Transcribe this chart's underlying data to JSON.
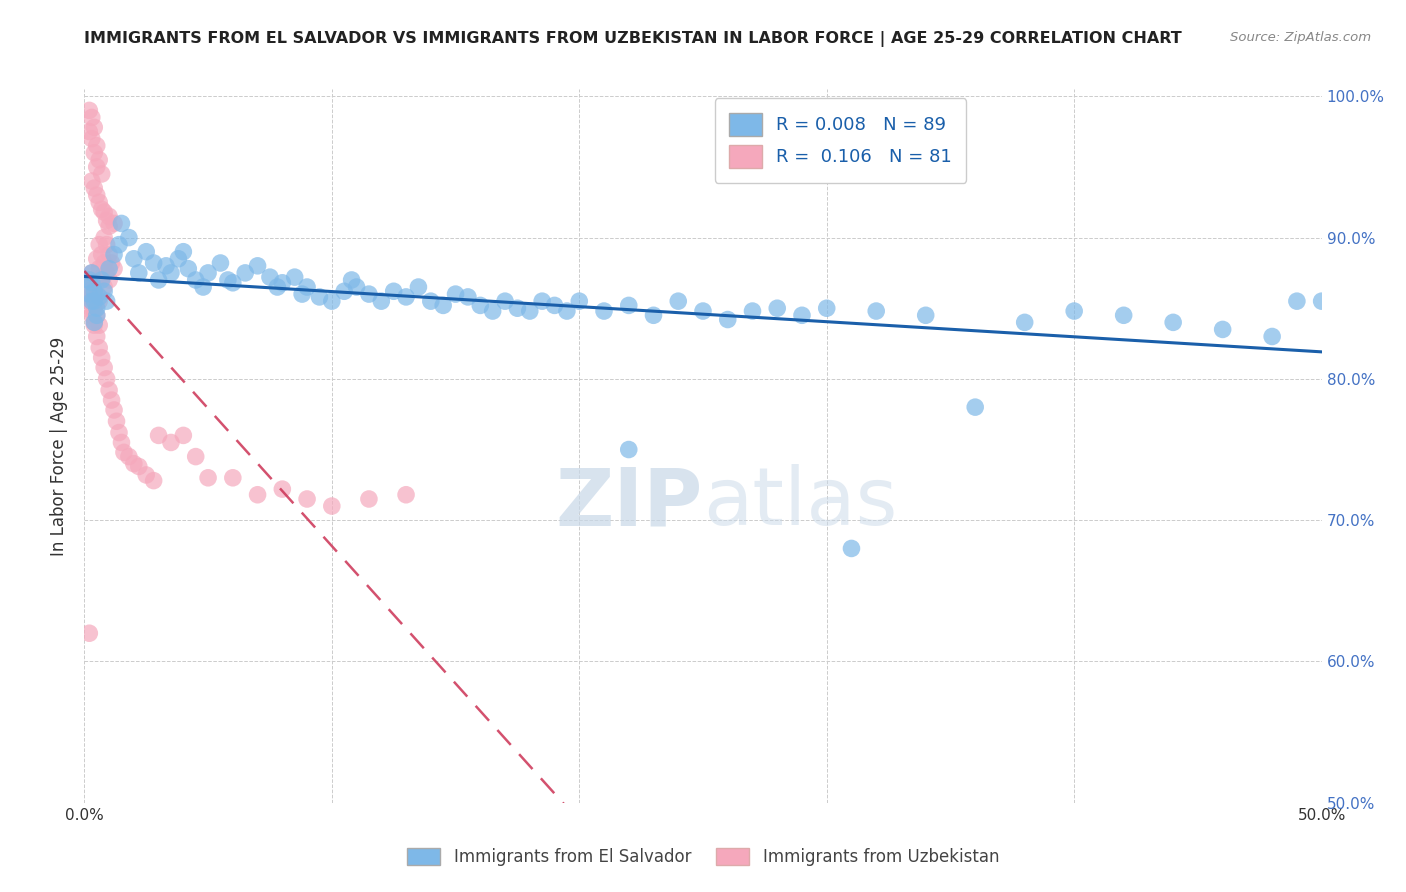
{
  "title": "IMMIGRANTS FROM EL SALVADOR VS IMMIGRANTS FROM UZBEKISTAN IN LABOR FORCE | AGE 25-29 CORRELATION CHART",
  "source": "Source: ZipAtlas.com",
  "ylabel": "In Labor Force | Age 25-29",
  "xlim": [
    0.0,
    0.5
  ],
  "ylim": [
    0.5,
    1.005
  ],
  "xticks": [
    0.0,
    0.1,
    0.2,
    0.3,
    0.4,
    0.5
  ],
  "yticks": [
    0.5,
    0.6,
    0.7,
    0.8,
    0.9,
    1.0
  ],
  "xticklabels": [
    "0.0%",
    "",
    "",
    "",
    "",
    "50.0%"
  ],
  "yticklabels_right": [
    "50.0%",
    "60.0%",
    "70.0%",
    "80.0%",
    "90.0%",
    "100.0%"
  ],
  "el_salvador_color": "#7eb8e8",
  "uzbekistan_color": "#f5a8bc",
  "trend_el_salvador_color": "#1a5faa",
  "trend_uzbekistan_color": "#cc3355",
  "R_el_salvador": 0.008,
  "N_el_salvador": 89,
  "R_uzbekistan": 0.106,
  "N_uzbekistan": 81,
  "watermark_zip": "ZIP",
  "watermark_atlas": "atlas",
  "legend_label_el_salvador": "Immigrants from El Salvador",
  "legend_label_uzbekistan": "Immigrants from Uzbekistan",
  "el_salvador_x": [
    0.002,
    0.003,
    0.002,
    0.004,
    0.003,
    0.004,
    0.005,
    0.003,
    0.004,
    0.005,
    0.006,
    0.007,
    0.008,
    0.009,
    0.01,
    0.012,
    0.014,
    0.015,
    0.018,
    0.02,
    0.022,
    0.025,
    0.028,
    0.03,
    0.033,
    0.035,
    0.038,
    0.04,
    0.042,
    0.045,
    0.048,
    0.05,
    0.055,
    0.058,
    0.06,
    0.065,
    0.07,
    0.075,
    0.078,
    0.08,
    0.085,
    0.088,
    0.09,
    0.095,
    0.1,
    0.105,
    0.108,
    0.11,
    0.115,
    0.12,
    0.125,
    0.13,
    0.135,
    0.14,
    0.145,
    0.15,
    0.155,
    0.16,
    0.165,
    0.17,
    0.175,
    0.18,
    0.185,
    0.19,
    0.195,
    0.2,
    0.21,
    0.22,
    0.23,
    0.24,
    0.25,
    0.26,
    0.27,
    0.28,
    0.29,
    0.3,
    0.32,
    0.34,
    0.36,
    0.38,
    0.4,
    0.42,
    0.44,
    0.46,
    0.48,
    0.22,
    0.31,
    0.49,
    0.5
  ],
  "el_salvador_y": [
    0.86,
    0.855,
    0.87,
    0.862,
    0.875,
    0.84,
    0.85,
    0.868,
    0.855,
    0.845,
    0.858,
    0.87,
    0.862,
    0.855,
    0.878,
    0.888,
    0.895,
    0.91,
    0.9,
    0.885,
    0.875,
    0.89,
    0.882,
    0.87,
    0.88,
    0.875,
    0.885,
    0.89,
    0.878,
    0.87,
    0.865,
    0.875,
    0.882,
    0.87,
    0.868,
    0.875,
    0.88,
    0.872,
    0.865,
    0.868,
    0.872,
    0.86,
    0.865,
    0.858,
    0.855,
    0.862,
    0.87,
    0.865,
    0.86,
    0.855,
    0.862,
    0.858,
    0.865,
    0.855,
    0.852,
    0.86,
    0.858,
    0.852,
    0.848,
    0.855,
    0.85,
    0.848,
    0.855,
    0.852,
    0.848,
    0.855,
    0.848,
    0.852,
    0.845,
    0.855,
    0.848,
    0.842,
    0.848,
    0.85,
    0.845,
    0.85,
    0.848,
    0.845,
    0.78,
    0.84,
    0.848,
    0.845,
    0.84,
    0.835,
    0.83,
    0.75,
    0.68,
    0.855,
    0.855
  ],
  "uzbekistan_x": [
    0.002,
    0.003,
    0.002,
    0.004,
    0.003,
    0.005,
    0.004,
    0.006,
    0.005,
    0.007,
    0.003,
    0.004,
    0.005,
    0.006,
    0.007,
    0.008,
    0.009,
    0.01,
    0.01,
    0.012,
    0.008,
    0.009,
    0.01,
    0.011,
    0.012,
    0.006,
    0.007,
    0.008,
    0.009,
    0.01,
    0.005,
    0.006,
    0.007,
    0.008,
    0.003,
    0.004,
    0.005,
    0.006,
    0.002,
    0.003,
    0.004,
    0.002,
    0.003,
    0.004,
    0.005,
    0.006,
    0.003,
    0.004,
    0.002,
    0.003,
    0.004,
    0.005,
    0.006,
    0.007,
    0.008,
    0.009,
    0.01,
    0.011,
    0.012,
    0.013,
    0.014,
    0.015,
    0.016,
    0.018,
    0.02,
    0.022,
    0.025,
    0.028,
    0.03,
    0.035,
    0.04,
    0.045,
    0.05,
    0.06,
    0.07,
    0.08,
    0.09,
    0.1,
    0.115,
    0.13,
    0.002
  ],
  "uzbekistan_y": [
    0.99,
    0.985,
    0.975,
    0.978,
    0.97,
    0.965,
    0.96,
    0.955,
    0.95,
    0.945,
    0.94,
    0.935,
    0.93,
    0.925,
    0.92,
    0.918,
    0.912,
    0.908,
    0.915,
    0.91,
    0.9,
    0.895,
    0.888,
    0.882,
    0.878,
    0.895,
    0.888,
    0.882,
    0.875,
    0.87,
    0.885,
    0.878,
    0.872,
    0.865,
    0.875,
    0.868,
    0.86,
    0.855,
    0.862,
    0.855,
    0.848,
    0.87,
    0.86,
    0.852,
    0.845,
    0.838,
    0.848,
    0.84,
    0.855,
    0.845,
    0.838,
    0.83,
    0.822,
    0.815,
    0.808,
    0.8,
    0.792,
    0.785,
    0.778,
    0.77,
    0.762,
    0.755,
    0.748,
    0.745,
    0.74,
    0.738,
    0.732,
    0.728,
    0.76,
    0.755,
    0.76,
    0.745,
    0.73,
    0.73,
    0.718,
    0.722,
    0.715,
    0.71,
    0.715,
    0.718,
    0.62
  ]
}
